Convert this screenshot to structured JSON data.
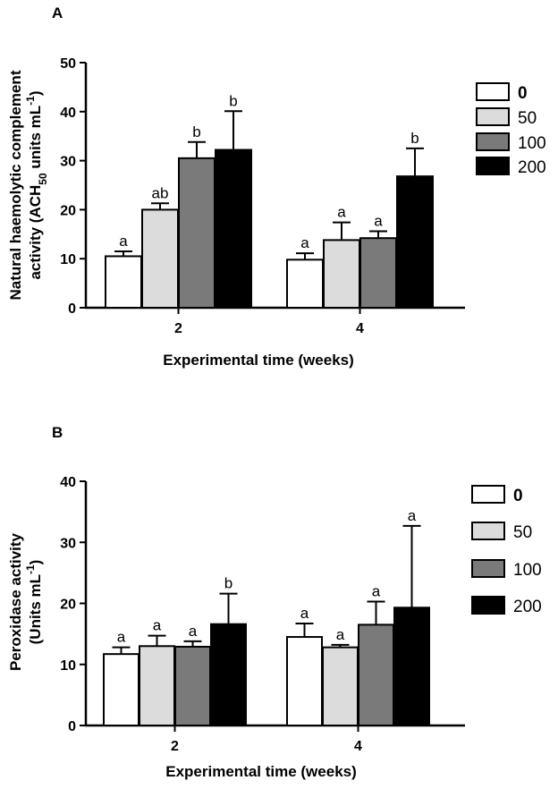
{
  "chart_data": [
    {
      "type": "bar",
      "panel": "A",
      "categories": [
        "2",
        "4"
      ],
      "xlabel": "Experimental time  (weeks)",
      "ylabel_line1": "Natural haemolytic complement",
      "ylabel_line2": "activity (ACH",
      "ylabel_sub": "50",
      "ylabel_rest": " units mL",
      "ylabel_sup": "-1",
      "ylabel_close": ")",
      "ylim": [
        0,
        50
      ],
      "yticks": [
        0,
        10,
        20,
        30,
        40,
        50
      ],
      "series": [
        {
          "name": "0",
          "color": "#ffffff",
          "values": [
            10.5,
            9.8
          ],
          "errors": [
            1.0,
            1.3
          ],
          "labels": [
            "a",
            "a"
          ]
        },
        {
          "name": "50",
          "color": "#dcdcdc",
          "values": [
            20.0,
            13.8
          ],
          "errors": [
            1.3,
            3.6
          ],
          "labels": [
            "ab",
            "a"
          ]
        },
        {
          "name": "100",
          "color": "#7a7a7a",
          "values": [
            30.5,
            14.2
          ],
          "errors": [
            3.3,
            1.4
          ],
          "labels": [
            "b",
            "a"
          ]
        },
        {
          "name": "200",
          "color": "#000000",
          "values": [
            32.2,
            26.8
          ],
          "errors": [
            7.9,
            5.7
          ],
          "labels": [
            "b",
            "b"
          ]
        }
      ]
    },
    {
      "type": "bar",
      "panel": "B",
      "categories": [
        "2",
        "4"
      ],
      "xlabel": "Experimental time  (weeks)",
      "ylabel_line1": "Peroxidase activity",
      "ylabel_line2": "(Units mL",
      "ylabel_sup": "-1",
      "ylabel_close": ")",
      "ylim": [
        0,
        40
      ],
      "yticks": [
        0,
        10,
        20,
        30,
        40
      ],
      "series": [
        {
          "name": "0",
          "color": "#ffffff",
          "values": [
            11.7,
            14.5
          ],
          "errors": [
            1.1,
            2.2
          ],
          "labels": [
            "a",
            "a"
          ]
        },
        {
          "name": "50",
          "color": "#dcdcdc",
          "values": [
            13.0,
            12.8
          ],
          "errors": [
            1.7,
            0.4
          ],
          "labels": [
            "a",
            "a"
          ]
        },
        {
          "name": "100",
          "color": "#7a7a7a",
          "values": [
            12.9,
            16.5
          ],
          "errors": [
            0.9,
            3.8
          ],
          "labels": [
            "a",
            "a"
          ]
        },
        {
          "name": "200",
          "color": "#000000",
          "values": [
            16.6,
            19.3
          ],
          "errors": [
            5.0,
            13.4
          ],
          "labels": [
            "b",
            "a"
          ]
        }
      ]
    }
  ]
}
